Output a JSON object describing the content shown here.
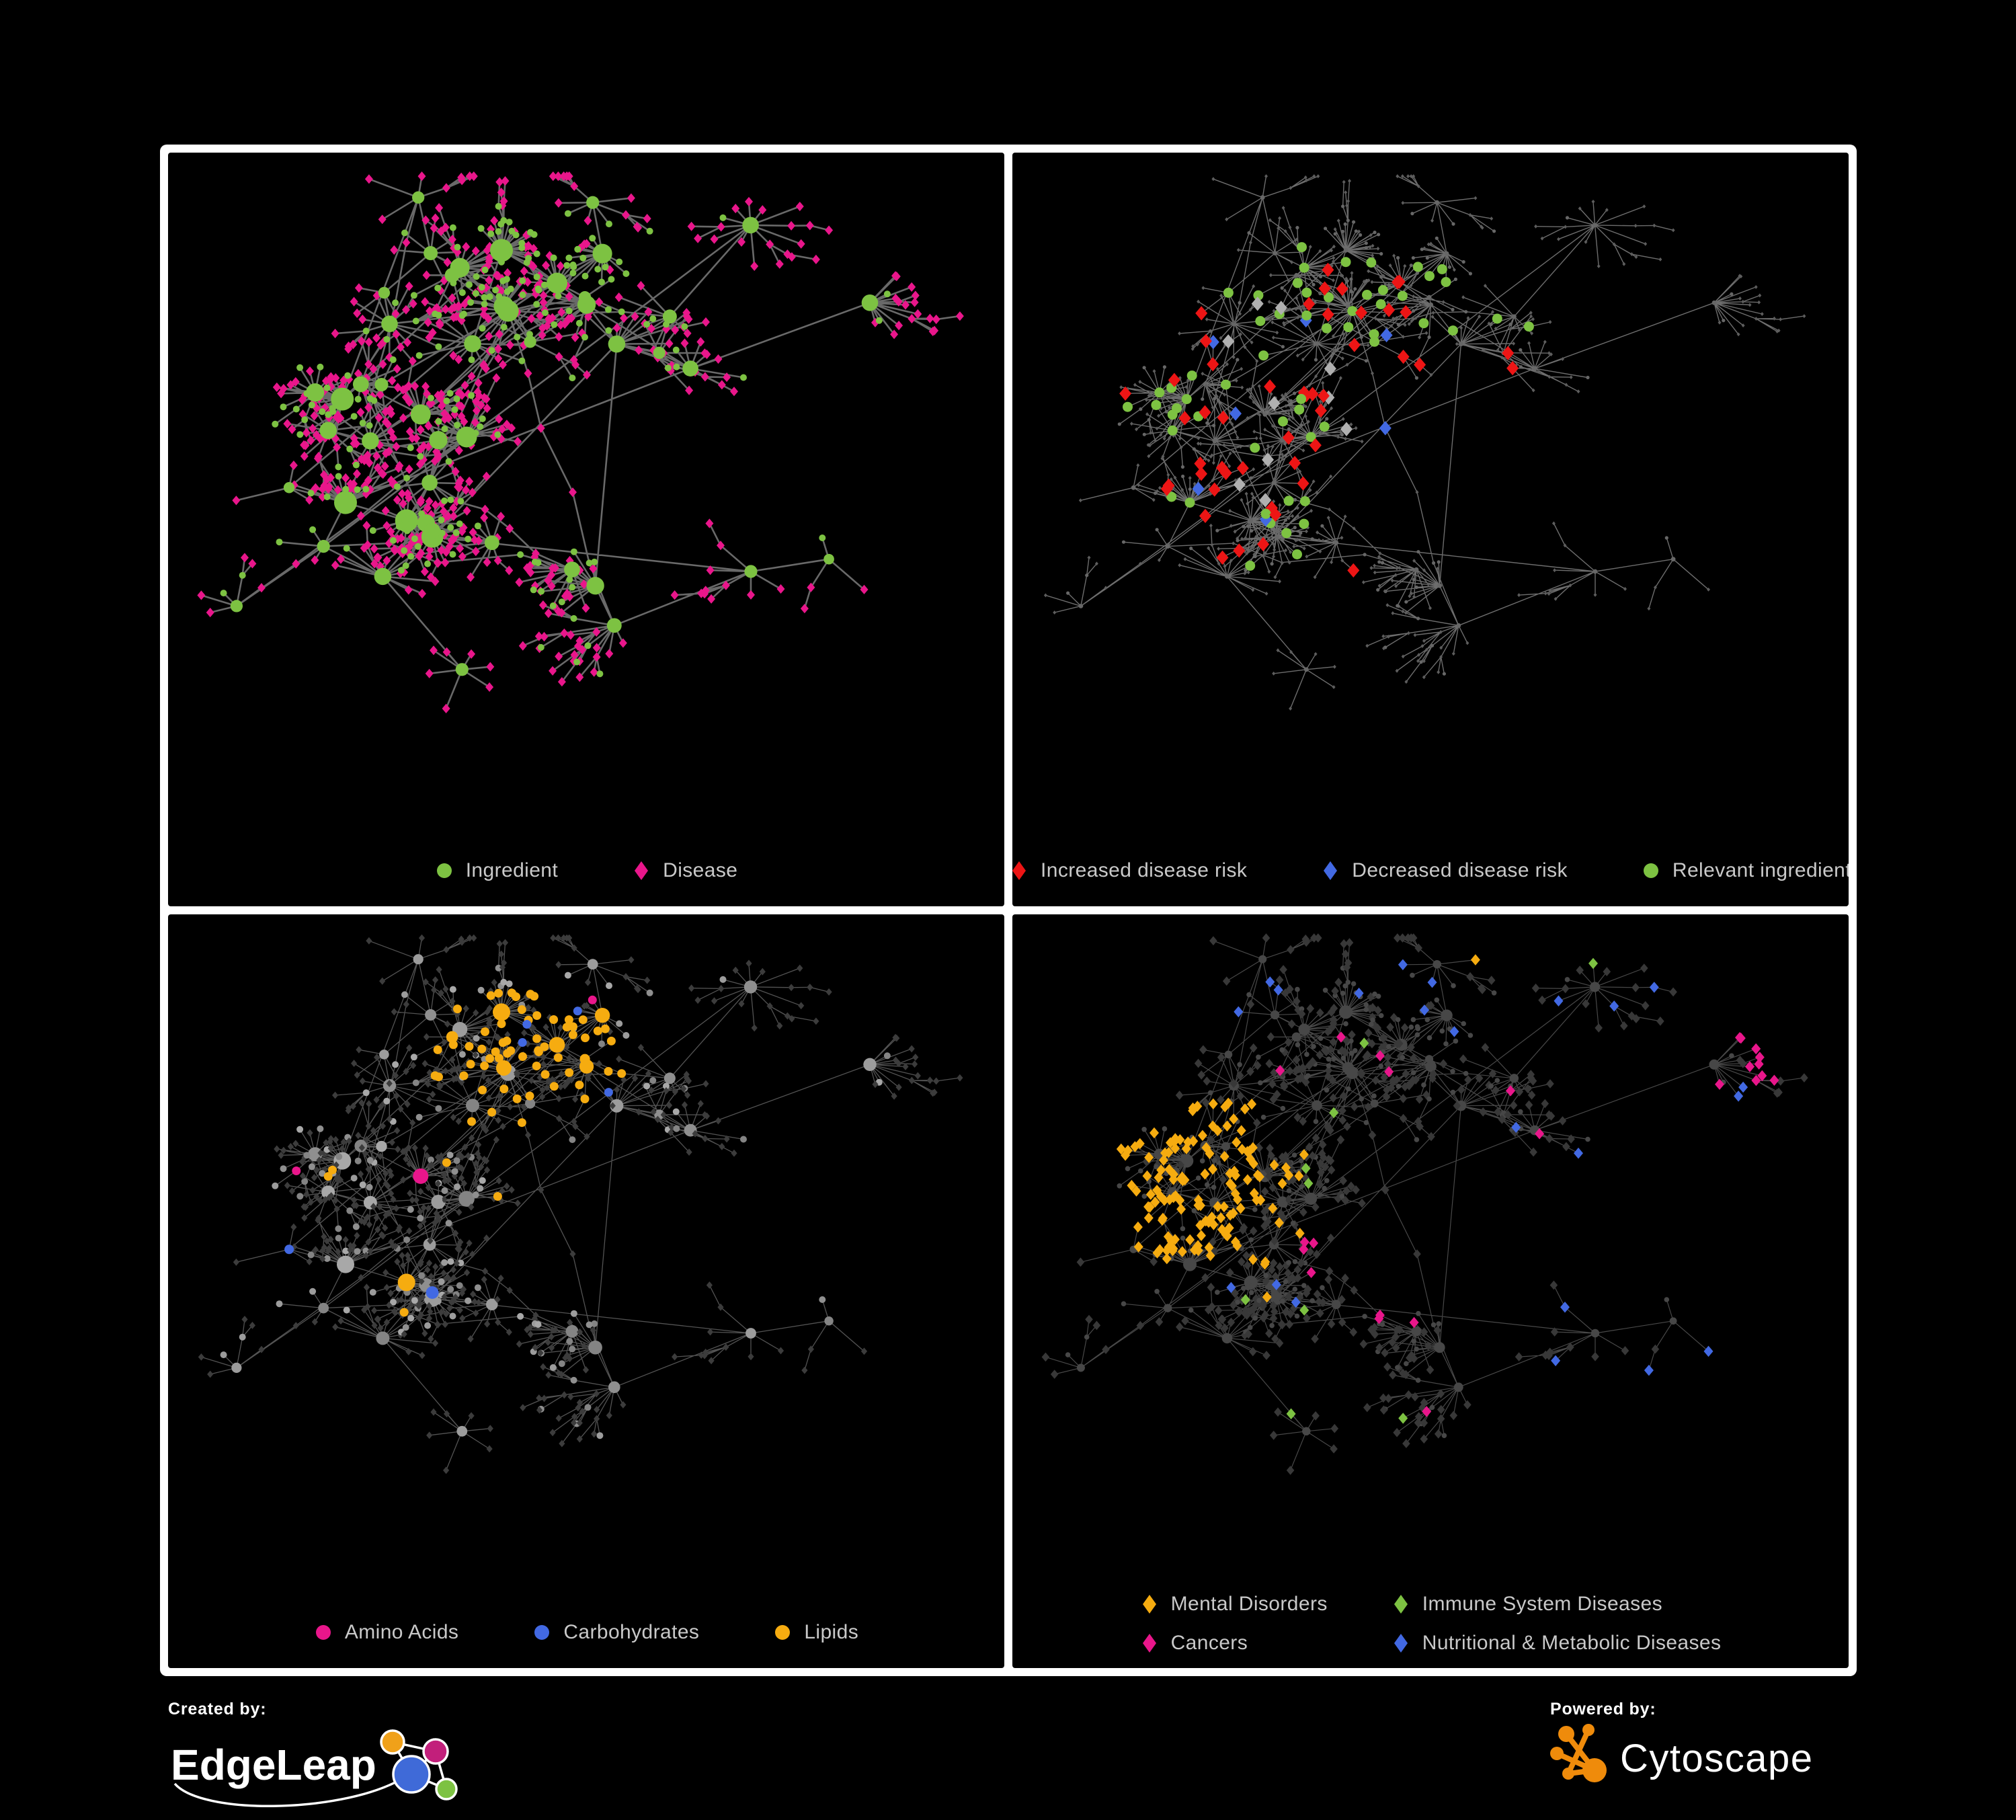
{
  "palette": {
    "background": "#000000",
    "panel_border": "#ffffff",
    "legend_text": "#c9c9c9",
    "green": "#7dc242",
    "pink": "#e9168b",
    "red": "#ed1515",
    "blue": "#4269e3",
    "silver": "#b0b0b0",
    "orange": "#f6ac10",
    "gray_node": "#949494",
    "dark_diamond": "#383838",
    "dim_node": "#676767",
    "edge_dense": "#6f6f6f",
    "edge_light": "#8a8a8a",
    "cytoscape_orange": "#ef8b0b",
    "edgeleap_blue": "#3f6ad8",
    "edgeleap_magenta": "#c21f7b",
    "edgeleap_green": "#7dc242",
    "edgeleap_orange": "#f0a11a"
  },
  "panels": [
    {
      "id": "ingredient-disease",
      "legend": [
        {
          "shape": "circle",
          "color": "green",
          "label": "Ingredient"
        },
        {
          "shape": "diamond",
          "color": "pink",
          "label": "Disease"
        }
      ]
    },
    {
      "id": "disease-risk",
      "legend": [
        {
          "shape": "diamond",
          "color": "red",
          "label": "Increased disease risk"
        },
        {
          "shape": "diamond",
          "color": "blue",
          "label": "Decreased disease risk"
        },
        {
          "shape": "circle",
          "color": "green",
          "label": "Relevant ingredient"
        }
      ]
    },
    {
      "id": "nutrient-classes",
      "legend": [
        {
          "shape": "circle",
          "color": "pink",
          "label": "Amino Acids"
        },
        {
          "shape": "circle",
          "color": "blue",
          "label": "Carbohydrates"
        },
        {
          "shape": "circle",
          "color": "orange",
          "label": "Lipids"
        }
      ]
    },
    {
      "id": "disease-categories",
      "legend_columns": 2,
      "legend": [
        {
          "shape": "diamond",
          "color": "orange",
          "label": "Mental Disorders"
        },
        {
          "shape": "diamond",
          "color": "green",
          "label": "Immune System Diseases"
        },
        {
          "shape": "diamond",
          "color": "pink",
          "label": "Cancers"
        },
        {
          "shape": "diamond",
          "color": "blue",
          "label": "Nutritional & Metabolic Diseases"
        }
      ]
    }
  ],
  "footer": {
    "created_by_label": "Created by:",
    "created_by_brand": "EdgeLeap",
    "powered_by_label": "Powered by:",
    "powered_by_brand": "Cytoscape"
  }
}
